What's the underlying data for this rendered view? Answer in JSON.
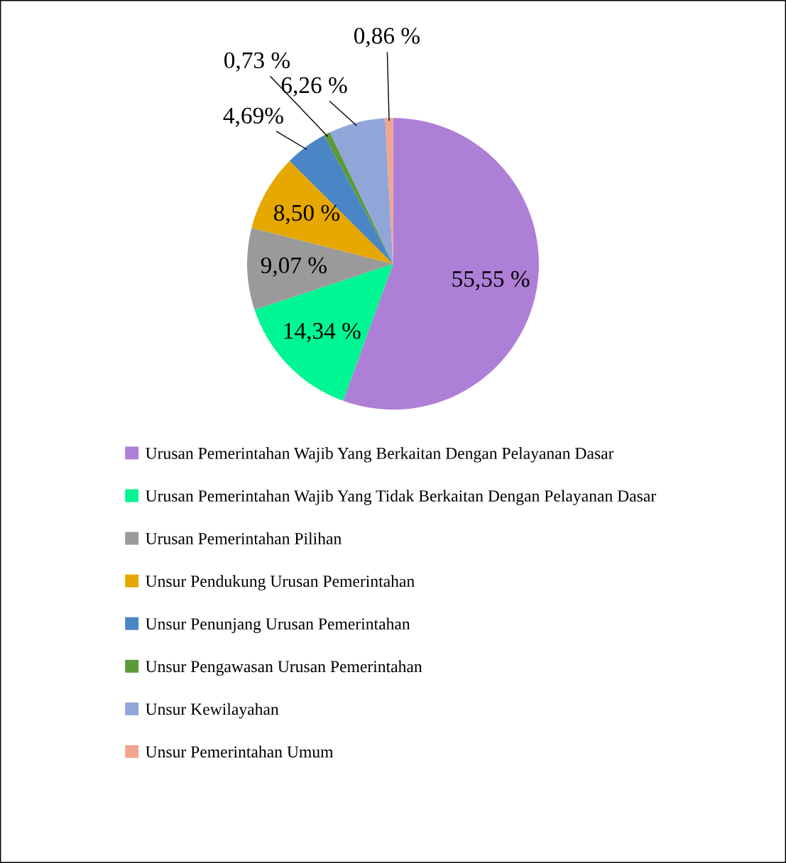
{
  "chart_data": {
    "type": "pie",
    "categories": [
      "Urusan Pemerintahan Wajib Yang Berkaitan Dengan Pelayanan Dasar",
      "Urusan Pemerintahan Wajib Yang Tidak Berkaitan Dengan Pelayanan Dasar",
      "Urusan Pemerintahan Pilihan",
      "Unsur Pendukung Urusan Pemerintahan",
      "Unsur Penunjang Urusan Pemerintahan",
      "Unsur Pengawasan Urusan Pemerintahan",
      "Unsur Kewilayahan",
      "Unsur Pemerintahan Umum"
    ],
    "values": [
      55.55,
      14.34,
      9.07,
      8.5,
      4.69,
      0.73,
      6.26,
      0.86
    ],
    "value_labels": [
      "55,55 %",
      "14,34 %",
      "9,07 %",
      "8,50 %",
      "4,69%",
      "0,73 %",
      "6,26 %",
      "0,86 %"
    ],
    "colors": [
      "#ae7fd6",
      "#00f593",
      "#9a9a9a",
      "#e6a800",
      "#4a86c5",
      "#5a9a3a",
      "#90a6d8",
      "#f2a58e"
    ],
    "legend": "bottom"
  }
}
